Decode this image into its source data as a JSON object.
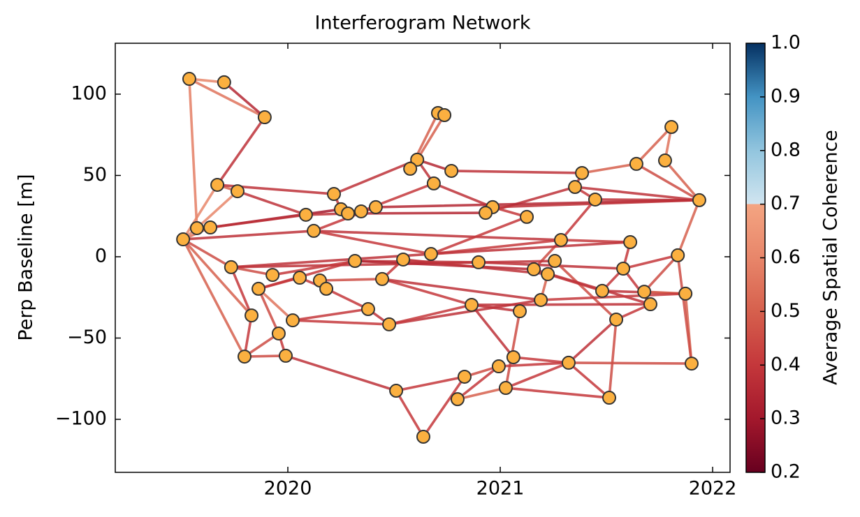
{
  "chart_data": {
    "type": "network",
    "title": "Interferogram Network",
    "ylabel": "Perp Baseline [m]",
    "xlim": [
      2019.1875,
      2022.082
    ],
    "xticks": [
      2020,
      2021,
      2022
    ],
    "ylim": [
      -132.6,
      131.3
    ],
    "yticks": [
      {
        "value": -100,
        "label": "−100"
      },
      {
        "value": -50,
        "label": "−50"
      },
      0,
      50,
      100
    ],
    "node_color": "#fbb040",
    "node_edge_color": "#333333",
    "x": [
      2019.536,
      2019.7,
      2019.891,
      2020.707,
      2020.737,
      2021.806,
      2020.609,
      2020.576,
      2020.77,
      2020.687,
      2021.641,
      2021.776,
      2021.385,
      2021.352,
      2019.668,
      2019.763,
      2020.217,
      2021.447,
      2021.937,
      2020.25,
      2020.283,
      2020.345,
      2020.414,
      2020.085,
      2020.964,
      2020.931,
      2021.125,
      2019.572,
      2019.635,
      2020.122,
      2019.507,
      2021.286,
      2021.612,
      2020.674,
      2021.836,
      2020.543,
      2020.316,
      2020.898,
      2021.257,
      2019.733,
      2021.158,
      2021.579,
      2019.928,
      2021.224,
      2020.056,
      2020.151,
      2020.444,
      2019.862,
      2020.181,
      2021.48,
      2021.678,
      2021.872,
      2021.191,
      2021.707,
      2020.865,
      2020.378,
      2021.092,
      2019.829,
      2020.023,
      2021.546,
      2020.477,
      2019.957,
      2019.796,
      2019.99,
      2021.062,
      2021.322,
      2021.901,
      2020.993,
      2020.832,
      2021.026,
      2020.51,
      2020.799,
      2021.513,
      2020.638
    ],
    "y": [
      109.4,
      107.3,
      85.8,
      88.4,
      87.1,
      79.8,
      59.7,
      54.1,
      52.8,
      45.1,
      57.1,
      59.2,
      51.5,
      42.9,
      44.2,
      40.3,
      38.6,
      35.2,
      34.8,
      29.2,
      26.6,
      27.9,
      30.5,
      25.8,
      30.5,
      27.0,
      24.5,
      17.6,
      18.0,
      15.9,
      10.7,
      10.3,
      9.0,
      1.7,
      0.9,
      -1.7,
      -2.6,
      -3.4,
      -2.6,
      -6.4,
      -7.7,
      -7.3,
      -11.2,
      -10.7,
      -12.9,
      -14.6,
      -13.7,
      -19.7,
      -19.7,
      -21.0,
      -21.5,
      -22.7,
      -26.6,
      -29.2,
      -29.6,
      -32.2,
      -33.5,
      -36.1,
      -39.1,
      -38.6,
      -41.6,
      -47.2,
      -61.4,
      -60.9,
      -61.8,
      -65.2,
      -65.7,
      -67.4,
      -73.8,
      -80.7,
      -82.4,
      -87.6,
      -86.7,
      -110.7
    ],
    "edges": [
      [
        0,
        2
      ],
      [
        1,
        2
      ],
      [
        0,
        1
      ],
      [
        0,
        27
      ],
      [
        2,
        14
      ],
      [
        14,
        30
      ],
      [
        14,
        15
      ],
      [
        14,
        16
      ],
      [
        15,
        27
      ],
      [
        15,
        23
      ],
      [
        3,
        7
      ],
      [
        4,
        6
      ],
      [
        6,
        8
      ],
      [
        6,
        9
      ],
      [
        8,
        12
      ],
      [
        12,
        10
      ],
      [
        10,
        5
      ],
      [
        5,
        11
      ],
      [
        11,
        18
      ],
      [
        10,
        18
      ],
      [
        12,
        13
      ],
      [
        13,
        18
      ],
      [
        13,
        17
      ],
      [
        17,
        18
      ],
      [
        13,
        25
      ],
      [
        16,
        6
      ],
      [
        16,
        19
      ],
      [
        9,
        24
      ],
      [
        9,
        21
      ],
      [
        22,
        18
      ],
      [
        24,
        18
      ],
      [
        24,
        26
      ],
      [
        24,
        25
      ],
      [
        20,
        25
      ],
      [
        28,
        19
      ],
      [
        28,
        23
      ],
      [
        23,
        20
      ],
      [
        29,
        22
      ],
      [
        30,
        28
      ],
      [
        30,
        27
      ],
      [
        30,
        29
      ],
      [
        29,
        31
      ],
      [
        33,
        31
      ],
      [
        31,
        17
      ],
      [
        31,
        40
      ],
      [
        32,
        31
      ],
      [
        32,
        41
      ],
      [
        34,
        18
      ],
      [
        34,
        41
      ],
      [
        34,
        50
      ],
      [
        26,
        33
      ],
      [
        29,
        33
      ],
      [
        33,
        32
      ],
      [
        39,
        33
      ],
      [
        30,
        39
      ],
      [
        30,
        57
      ],
      [
        30,
        62
      ],
      [
        39,
        57
      ],
      [
        39,
        42
      ],
      [
        39,
        38
      ],
      [
        42,
        36
      ],
      [
        47,
        36
      ],
      [
        47,
        44
      ],
      [
        47,
        61
      ],
      [
        47,
        58
      ],
      [
        44,
        48
      ],
      [
        45,
        46
      ],
      [
        45,
        48
      ],
      [
        36,
        37
      ],
      [
        36,
        40
      ],
      [
        35,
        46
      ],
      [
        46,
        54
      ],
      [
        46,
        52
      ],
      [
        35,
        43
      ],
      [
        37,
        41
      ],
      [
        38,
        43
      ],
      [
        38,
        59
      ],
      [
        43,
        52
      ],
      [
        43,
        49
      ],
      [
        40,
        53
      ],
      [
        41,
        49
      ],
      [
        41,
        53
      ],
      [
        49,
        51
      ],
      [
        50,
        51
      ],
      [
        51,
        66
      ],
      [
        51,
        52
      ],
      [
        52,
        60
      ],
      [
        55,
        48
      ],
      [
        55,
        58
      ],
      [
        55,
        60
      ],
      [
        58,
        60
      ],
      [
        54,
        53
      ],
      [
        54,
        56
      ],
      [
        54,
        64
      ],
      [
        60,
        54
      ],
      [
        56,
        69
      ],
      [
        59,
        53
      ],
      [
        59,
        65
      ],
      [
        59,
        72
      ],
      [
        34,
        66
      ],
      [
        64,
        65
      ],
      [
        65,
        66
      ],
      [
        65,
        72
      ],
      [
        67,
        65
      ],
      [
        67,
        68
      ],
      [
        69,
        72
      ],
      [
        69,
        65
      ],
      [
        61,
        63
      ],
      [
        57,
        62
      ],
      [
        62,
        63
      ],
      [
        61,
        62
      ],
      [
        63,
        70
      ],
      [
        70,
        73
      ],
      [
        73,
        68
      ],
      [
        70,
        68
      ],
      [
        71,
        69
      ],
      [
        71,
        67
      ]
    ],
    "coherence": [
      0.55,
      0.35,
      0.6,
      0.58,
      0.38,
      0.6,
      0.5,
      0.38,
      0.6,
      0.38,
      0.5,
      0.5,
      0.35,
      0.38,
      0.38,
      0.5,
      0.5,
      0.55,
      0.5,
      0.45,
      0.38,
      0.38,
      0.4,
      0.38,
      0.38,
      0.38,
      0.4,
      0.38,
      0.4,
      0.35,
      0.38,
      0.4,
      0.4,
      0.35,
      0.3,
      0.38,
      0.38,
      0.4,
      0.55,
      0.6,
      0.38,
      0.38,
      0.4,
      0.4,
      0.45,
      0.4,
      0.4,
      0.5,
      0.4,
      0.45,
      0.4,
      0.4,
      0.38,
      0.38,
      0.45,
      0.5,
      0.5,
      0.4,
      0.45,
      0.38,
      0.4,
      0.4,
      0.4,
      0.45,
      0.55,
      0.4,
      0.45,
      0.4,
      0.38,
      0.35,
      0.4,
      0.4,
      0.38,
      0.38,
      0.38,
      0.45,
      0.45,
      0.5,
      0.4,
      0.38,
      0.4,
      0.4,
      0.38,
      0.5,
      0.5,
      0.4,
      0.38,
      0.4,
      0.4,
      0.38,
      0.4,
      0.38,
      0.38,
      0.38,
      0.4,
      0.45,
      0.4,
      0.38,
      0.45,
      0.45,
      0.4,
      0.45,
      0.4,
      0.4,
      0.45,
      0.4,
      0.4,
      0.4,
      0.4,
      0.45,
      0.45,
      0.38,
      0.4,
      0.4,
      0.4,
      0.5,
      0.4
    ],
    "colorbar": {
      "label": "Average Spatial Coherence",
      "lim": [
        0.2,
        1.0
      ],
      "ticks": [
        0.2,
        0.3,
        0.4,
        0.5,
        0.6,
        0.7,
        0.8,
        0.9,
        {
          "value": 1,
          "label": "1.0"
        }
      ],
      "colormap": [
        [
          0.2,
          "#67001f"
        ],
        [
          0.3,
          "#a3182c"
        ],
        [
          0.4,
          "#c4373b"
        ],
        [
          0.5,
          "#d6604d"
        ],
        [
          0.6,
          "#e8866a"
        ],
        [
          0.7,
          "#f4a582"
        ],
        [
          0.7,
          "#d1e5f0"
        ],
        [
          0.8,
          "#92c5de"
        ],
        [
          0.9,
          "#4393c3"
        ],
        [
          1.0,
          "#053061"
        ]
      ]
    }
  }
}
